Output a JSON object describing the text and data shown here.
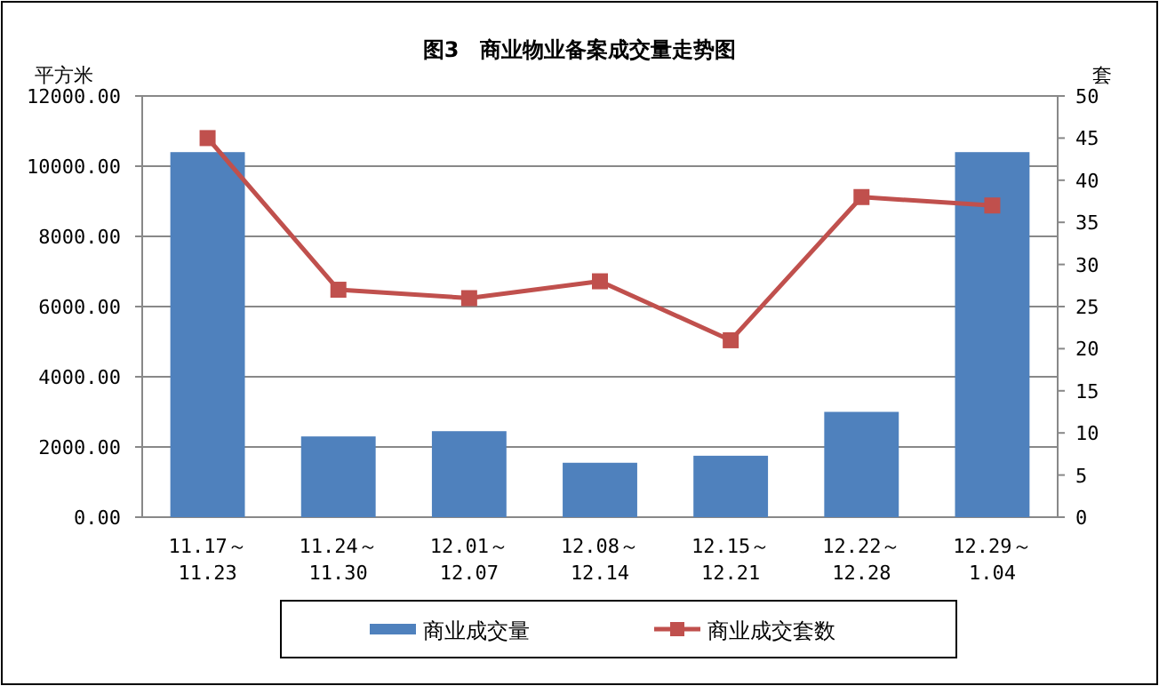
{
  "chart_data": {
    "type": "bar",
    "title": "图3　商业物业备案成交量走势图",
    "ylabel": "平方米",
    "y2label": "套",
    "categories": [
      "11.17～\n11.23",
      "11.24～\n11.30",
      "12.01～\n12.07",
      "12.08～\n12.14",
      "12.15～\n12.21",
      "12.22～\n12.28",
      "12.29～\n1.04"
    ],
    "series": [
      {
        "name": "商业成交量",
        "color": "#4f81bd",
        "values": [
          10400,
          2300,
          2450,
          1550,
          1750,
          3000,
          10400
        ]
      },
      {
        "name": "商业成交套数",
        "type": "line",
        "axis": "y2",
        "color": "#c0504d",
        "marker": "square",
        "values": [
          45,
          27,
          26,
          28,
          21,
          38,
          37
        ]
      }
    ],
    "ylim": [
      0,
      12000
    ],
    "yticks": [
      {
        "value": 0,
        "label": "0.00"
      },
      {
        "value": 2000,
        "label": "2000.00"
      },
      {
        "value": 4000,
        "label": "4000.00"
      },
      {
        "value": 6000,
        "label": "6000.00"
      },
      {
        "value": 8000,
        "label": "8000.00"
      },
      {
        "value": 10000,
        "label": "10000.00"
      },
      {
        "value": 12000,
        "label": "12000.00"
      }
    ],
    "y2lim": [
      0,
      50
    ],
    "y2ticks": [
      0,
      5,
      10,
      15,
      20,
      25,
      30,
      35,
      40,
      45,
      50
    ],
    "grid": "y",
    "legend": "bottom"
  }
}
